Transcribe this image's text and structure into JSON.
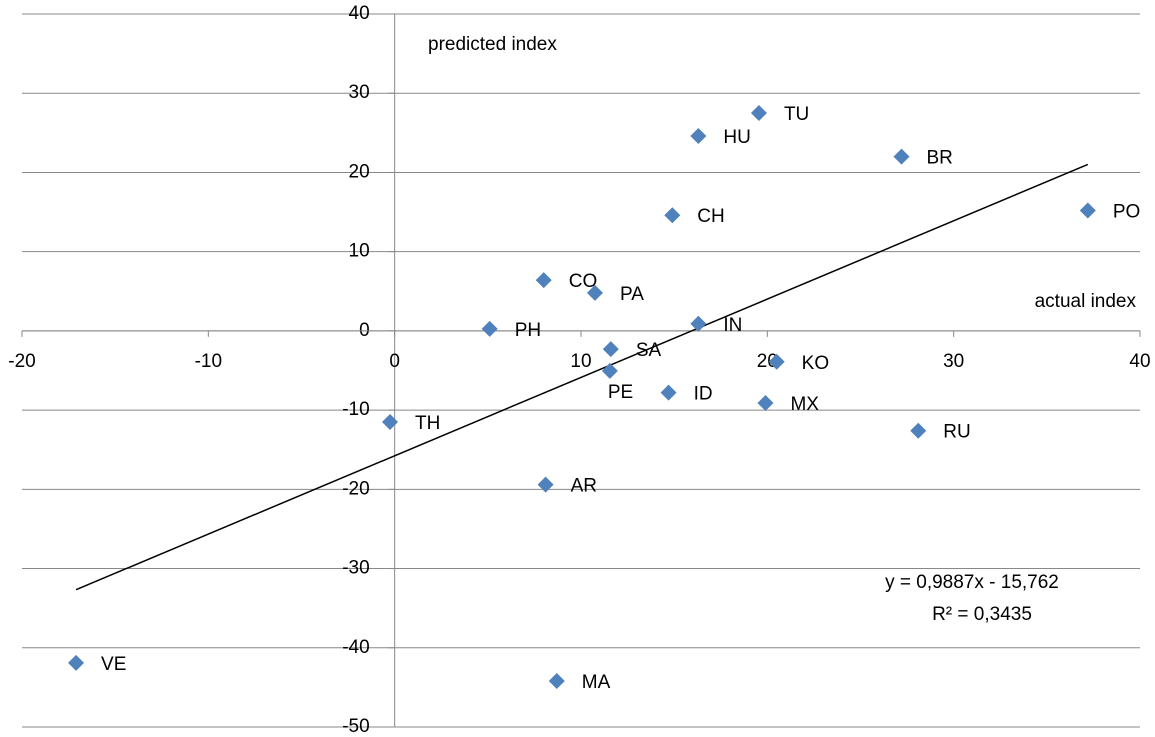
{
  "chart_data": {
    "type": "scatter",
    "labels": [
      "VE",
      "MA",
      "TH",
      "PH",
      "CO",
      "PA",
      "SA",
      "PE",
      "AR",
      "ID",
      "CH",
      "HU",
      "IN",
      "TU",
      "KO",
      "MX",
      "BR",
      "RU",
      "PO"
    ],
    "x": [
      -17.1,
      8.7,
      -0.25,
      5.1,
      8.0,
      10.75,
      11.6,
      11.55,
      8.1,
      14.7,
      14.9,
      16.3,
      16.3,
      19.55,
      20.5,
      19.9,
      27.2,
      28.1,
      37.2
    ],
    "y": [
      -41.9,
      -44.2,
      -11.5,
      0.25,
      6.4,
      4.8,
      -2.3,
      -5.05,
      -19.4,
      -7.8,
      14.6,
      24.6,
      0.9,
      27.5,
      -3.9,
      -9.1,
      22.0,
      -12.6,
      15.2
    ],
    "color": "#4f81bd",
    "xlim": [
      -20,
      40
    ],
    "ylim": [
      -50,
      40
    ],
    "xticks": [
      -20,
      -10,
      0,
      10,
      20,
      30,
      40
    ],
    "yticks": [
      -50,
      -40,
      -30,
      -20,
      -10,
      0,
      10,
      20,
      30,
      40
    ],
    "grid": true,
    "x_label": "actual index",
    "y_label": "predicted index",
    "trendline": {
      "slope": 0.9887,
      "intercept": -15.762,
      "equation": "y = 0,9887x - 15,762",
      "r_squared": "R² = 0,3435"
    }
  }
}
